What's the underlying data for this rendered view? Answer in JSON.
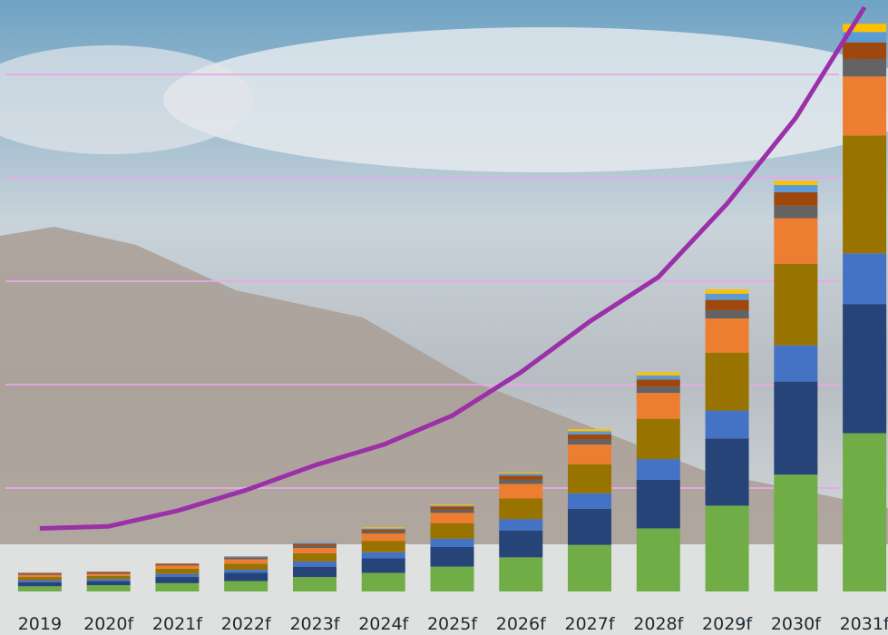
{
  "chart_data": {
    "type": "bar",
    "categories": [
      "2019",
      "2020f",
      "2021f",
      "2022f",
      "2023f",
      "2024f",
      "2025f",
      "2026f",
      "2027f",
      "2028f",
      "2029f",
      "2030f",
      "2031f"
    ],
    "series": [
      {
        "color": "#70ad47",
        "values": [
          0.05,
          0.06,
          0.08,
          0.1,
          0.14,
          0.18,
          0.24,
          0.33,
          0.45,
          0.61,
          0.83,
          1.13,
          1.53
        ]
      },
      {
        "color": "#264478",
        "values": [
          0.04,
          0.04,
          0.06,
          0.08,
          0.1,
          0.14,
          0.19,
          0.26,
          0.35,
          0.47,
          0.65,
          0.9,
          1.25
        ]
      },
      {
        "color": "#4472c4",
        "values": [
          0.02,
          0.02,
          0.03,
          0.03,
          0.05,
          0.06,
          0.08,
          0.11,
          0.15,
          0.2,
          0.27,
          0.35,
          0.49
        ]
      },
      {
        "color": "#997300",
        "values": [
          0.03,
          0.03,
          0.05,
          0.06,
          0.08,
          0.11,
          0.15,
          0.2,
          0.28,
          0.39,
          0.56,
          0.79,
          1.14
        ]
      },
      {
        "color": "#ed7d31",
        "values": [
          0.02,
          0.02,
          0.03,
          0.04,
          0.05,
          0.07,
          0.1,
          0.14,
          0.19,
          0.25,
          0.33,
          0.44,
          0.57
        ]
      },
      {
        "color": "#636363",
        "values": [
          0.01,
          0.01,
          0.01,
          0.01,
          0.02,
          0.02,
          0.03,
          0.04,
          0.05,
          0.06,
          0.08,
          0.12,
          0.17
        ]
      },
      {
        "color": "#9e480e",
        "values": [
          0.01,
          0.01,
          0.01,
          0.01,
          0.02,
          0.02,
          0.03,
          0.04,
          0.05,
          0.07,
          0.1,
          0.13,
          0.16
        ]
      },
      {
        "color": "#5b9bd5",
        "values": [
          0,
          0,
          0,
          0.01,
          0.01,
          0.01,
          0.01,
          0.02,
          0.03,
          0.04,
          0.06,
          0.07,
          0.1
        ]
      },
      {
        "color": "#ffc000",
        "values": [
          0,
          0,
          0,
          0,
          0,
          0.01,
          0.01,
          0.01,
          0.02,
          0.03,
          0.04,
          0.04,
          0.08
        ]
      }
    ],
    "line": {
      "color": "#9b30a8",
      "values": [
        0.61,
        0.63,
        0.78,
        0.98,
        1.22,
        1.42,
        1.7,
        2.12,
        2.61,
        3.04,
        3.75,
        4.58,
        5.65
      ]
    },
    "ylim": [
      0,
      5.72
    ],
    "yticks": [
      1,
      2,
      3,
      4,
      5
    ],
    "grid": true
  }
}
